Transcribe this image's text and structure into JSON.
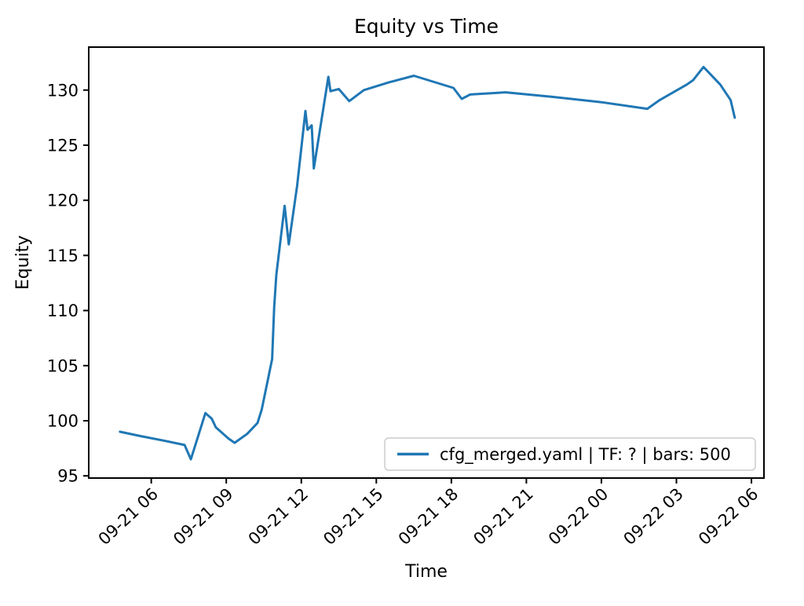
{
  "title": "Equity vs Time",
  "xlabel": "Time",
  "ylabel": "Equity",
  "legend": {
    "label": "cfg_merged.yaml | TF: ? | bars: 500",
    "position": "lower right"
  },
  "colors": {
    "line": "#1f77b4",
    "axis": "#000000",
    "legend_border": "#cccccc",
    "background": "#ffffff"
  },
  "chart_data": {
    "type": "line",
    "title": "Equity vs Time",
    "xlabel": "Time",
    "ylabel": "Equity",
    "grid": false,
    "legend_position": "lower right",
    "xlim_hours": [
      3.5,
      30.5
    ],
    "ylim": [
      94.8,
      133.9
    ],
    "x_ticks": [
      "09-21 06",
      "09-21 09",
      "09-21 12",
      "09-21 15",
      "09-21 18",
      "09-21 21",
      "09-22 00",
      "09-22 03",
      "09-22 06"
    ],
    "y_ticks": [
      95,
      100,
      105,
      110,
      115,
      120,
      125,
      130
    ],
    "series": [
      {
        "name": "cfg_merged.yaml | TF: ? | bars: 500",
        "points": [
          {
            "time": "09-21 04:45",
            "equity": 99.0
          },
          {
            "time": "09-21 05:35",
            "equity": 98.6
          },
          {
            "time": "09-21 06:30",
            "equity": 98.2
          },
          {
            "time": "09-21 07:20",
            "equity": 97.8
          },
          {
            "time": "09-21 07:35",
            "equity": 96.5
          },
          {
            "time": "09-21 08:10",
            "equity": 100.7
          },
          {
            "time": "09-21 08:25",
            "equity": 100.2
          },
          {
            "time": "09-21 08:35",
            "equity": 99.4
          },
          {
            "time": "09-21 09:05",
            "equity": 98.4
          },
          {
            "time": "09-21 09:20",
            "equity": 98.0
          },
          {
            "time": "09-21 09:50",
            "equity": 98.8
          },
          {
            "time": "09-21 10:15",
            "equity": 99.8
          },
          {
            "time": "09-21 10:25",
            "equity": 101.0
          },
          {
            "time": "09-21 10:50",
            "equity": 105.6
          },
          {
            "time": "09-21 10:55",
            "equity": 110.3
          },
          {
            "time": "09-21 11:00",
            "equity": 113.2
          },
          {
            "time": "09-21 11:20",
            "equity": 119.5
          },
          {
            "time": "09-21 11:30",
            "equity": 116.0
          },
          {
            "time": "09-21 11:50",
            "equity": 121.3
          },
          {
            "time": "09-21 12:10",
            "equity": 128.1
          },
          {
            "time": "09-21 12:15",
            "equity": 126.4
          },
          {
            "time": "09-21 12:25",
            "equity": 126.8
          },
          {
            "time": "09-21 12:30",
            "equity": 122.9
          },
          {
            "time": "09-21 13:05",
            "equity": 131.2
          },
          {
            "time": "09-21 13:10",
            "equity": 129.9
          },
          {
            "time": "09-21 13:30",
            "equity": 130.1
          },
          {
            "time": "09-21 13:55",
            "equity": 129.0
          },
          {
            "time": "09-21 14:30",
            "equity": 130.0
          },
          {
            "time": "09-21 15:30",
            "equity": 130.7
          },
          {
            "time": "09-21 16:30",
            "equity": 131.3
          },
          {
            "time": "09-21 18:05",
            "equity": 130.2
          },
          {
            "time": "09-21 18:25",
            "equity": 129.2
          },
          {
            "time": "09-21 18:45",
            "equity": 129.6
          },
          {
            "time": "09-21 20:10",
            "equity": 129.8
          },
          {
            "time": "09-21 22:00",
            "equity": 129.4
          },
          {
            "time": "09-22 00:00",
            "equity": 128.9
          },
          {
            "time": "09-22 01:50",
            "equity": 128.3
          },
          {
            "time": "09-22 02:20",
            "equity": 129.1
          },
          {
            "time": "09-22 03:25",
            "equity": 130.5
          },
          {
            "time": "09-22 03:40",
            "equity": 130.9
          },
          {
            "time": "09-22 04:05",
            "equity": 132.1
          },
          {
            "time": "09-22 04:45",
            "equity": 130.5
          },
          {
            "time": "09-22 05:10",
            "equity": 129.1
          },
          {
            "time": "09-22 05:20",
            "equity": 127.5
          }
        ]
      }
    ]
  }
}
